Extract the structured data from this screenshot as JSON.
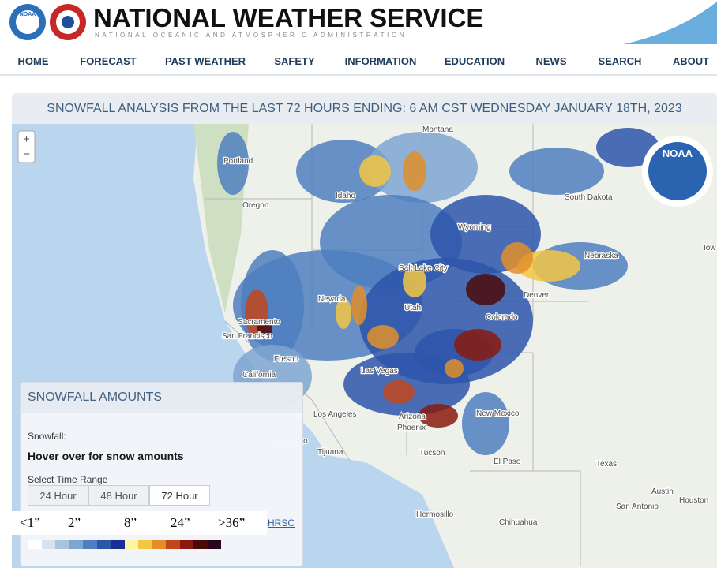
{
  "header": {
    "title": "NATIONAL WEATHER SERVICE",
    "subtitle": "NATIONAL OCEANIC AND ATMOSPHERIC ADMINISTRATION",
    "logo_text": "NOAA"
  },
  "nav": [
    "HOME",
    "FORECAST",
    "PAST WEATHER",
    "SAFETY",
    "INFORMATION",
    "EDUCATION",
    "NEWS",
    "SEARCH",
    "ABOUT"
  ],
  "panel": {
    "title": "SNOWFALL ANALYSIS FROM THE LAST 72 HOURS ENDING: 6 AM CST WEDNESDAY JANUARY 18TH, 2023"
  },
  "zoom": [
    "+",
    "−"
  ],
  "map": {
    "labels": [
      "Montana",
      "Portland",
      "Oregon",
      "Idaho",
      "Wyoming",
      "South Dakota",
      "Nebraska",
      "Iow",
      "Salt Lake City",
      "Nevada",
      "Sacramento",
      "San Francisco",
      "Fresno",
      "California",
      "Las Vegas",
      "Utah",
      "Denver",
      "Colorado",
      "Los Angeles",
      "Arizona",
      "Phoenix",
      "New Mexico",
      "San Diego",
      "Tijuana",
      "Tucson",
      "El Paso",
      "Texas",
      "Austin",
      "San Antonio",
      "Houston",
      "Hermosillo",
      "Chihuahua"
    ],
    "seal_text": "NOAA"
  },
  "legend": {
    "title": "SNOWFALL AMOUNTS",
    "snowfall_label": "Snowfall:",
    "hover_text": "Hover over for snow amounts",
    "range_label": "Select Time Range",
    "ranges": [
      "24 Hour",
      "48 Hour",
      "72 Hour"
    ],
    "scale_labels": [
      "<1”",
      "2”",
      "8”",
      "24”",
      ">36”"
    ],
    "link": "HRSC",
    "colors": [
      "#ffffff",
      "#d6e2ee",
      "#a9c4df",
      "#7ea6d2",
      "#4f7fc0",
      "#2d55aa",
      "#1a2e96",
      "#fff5a0",
      "#f2c744",
      "#e28f2a",
      "#c2461c",
      "#8a1a0e",
      "#4a0a0a",
      "#2a0620"
    ]
  }
}
